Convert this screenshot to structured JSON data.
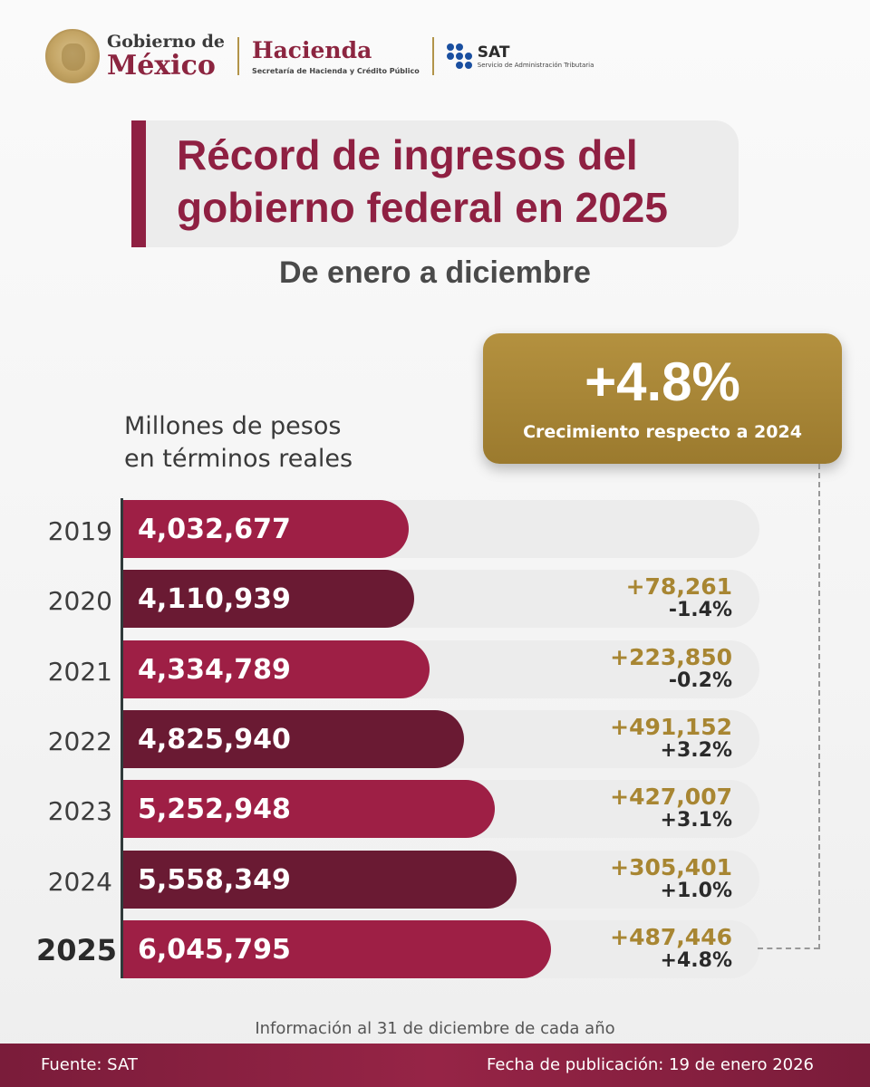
{
  "header": {
    "gobierno_line1": "Gobierno de",
    "gobierno_line2": "México",
    "hacienda_line1": "Hacienda",
    "hacienda_line2": "Secretaría de Hacienda y Crédito Público",
    "sat_line1": "SAT",
    "sat_line2": "Servicio de Administración Tributaria"
  },
  "title": {
    "line1": "Récord de ingresos del",
    "line2": "gobierno federal en 2025",
    "subtitle": "De enero a diciembre"
  },
  "badge": {
    "value": "+4.8%",
    "label": "Crecimiento respecto a 2024"
  },
  "units": {
    "line1": "Millones de pesos",
    "line2": "en términos reales"
  },
  "chart_data": {
    "type": "bar",
    "orientation": "horizontal",
    "title": "Récord de ingresos del gobierno federal en 2025",
    "subtitle": "De enero a diciembre",
    "unit_label": "Millones de pesos en términos reales",
    "xlim": [
      0,
      9000000
    ],
    "categories": [
      "2019",
      "2020",
      "2021",
      "2022",
      "2023",
      "2024",
      "2025"
    ],
    "values": [
      4032677,
      4110939,
      4334789,
      4825940,
      5252948,
      5558349,
      6045795
    ],
    "value_labels": [
      "4,032,677",
      "4,110,939",
      "4,334,789",
      "4,825,940",
      "5,252,948",
      "5,558,349",
      "6,045,795"
    ],
    "delta_labels": [
      "",
      "+78,261",
      "+223,850",
      "+491,152",
      "+427,007",
      "+305,401",
      "+487,446"
    ],
    "pct_labels": [
      "",
      "-1.4%",
      "-0.2%",
      "+3.2%",
      "+3.1%",
      "+1.0%",
      "+4.8%"
    ],
    "colors": [
      "#9e1f45",
      "#6a1a33"
    ]
  },
  "footnote": "Información al 31 de diciembre de cada año",
  "footer": {
    "source": "Fuente: SAT",
    "date": "Fecha de publicación: 19 de enero 2026"
  }
}
